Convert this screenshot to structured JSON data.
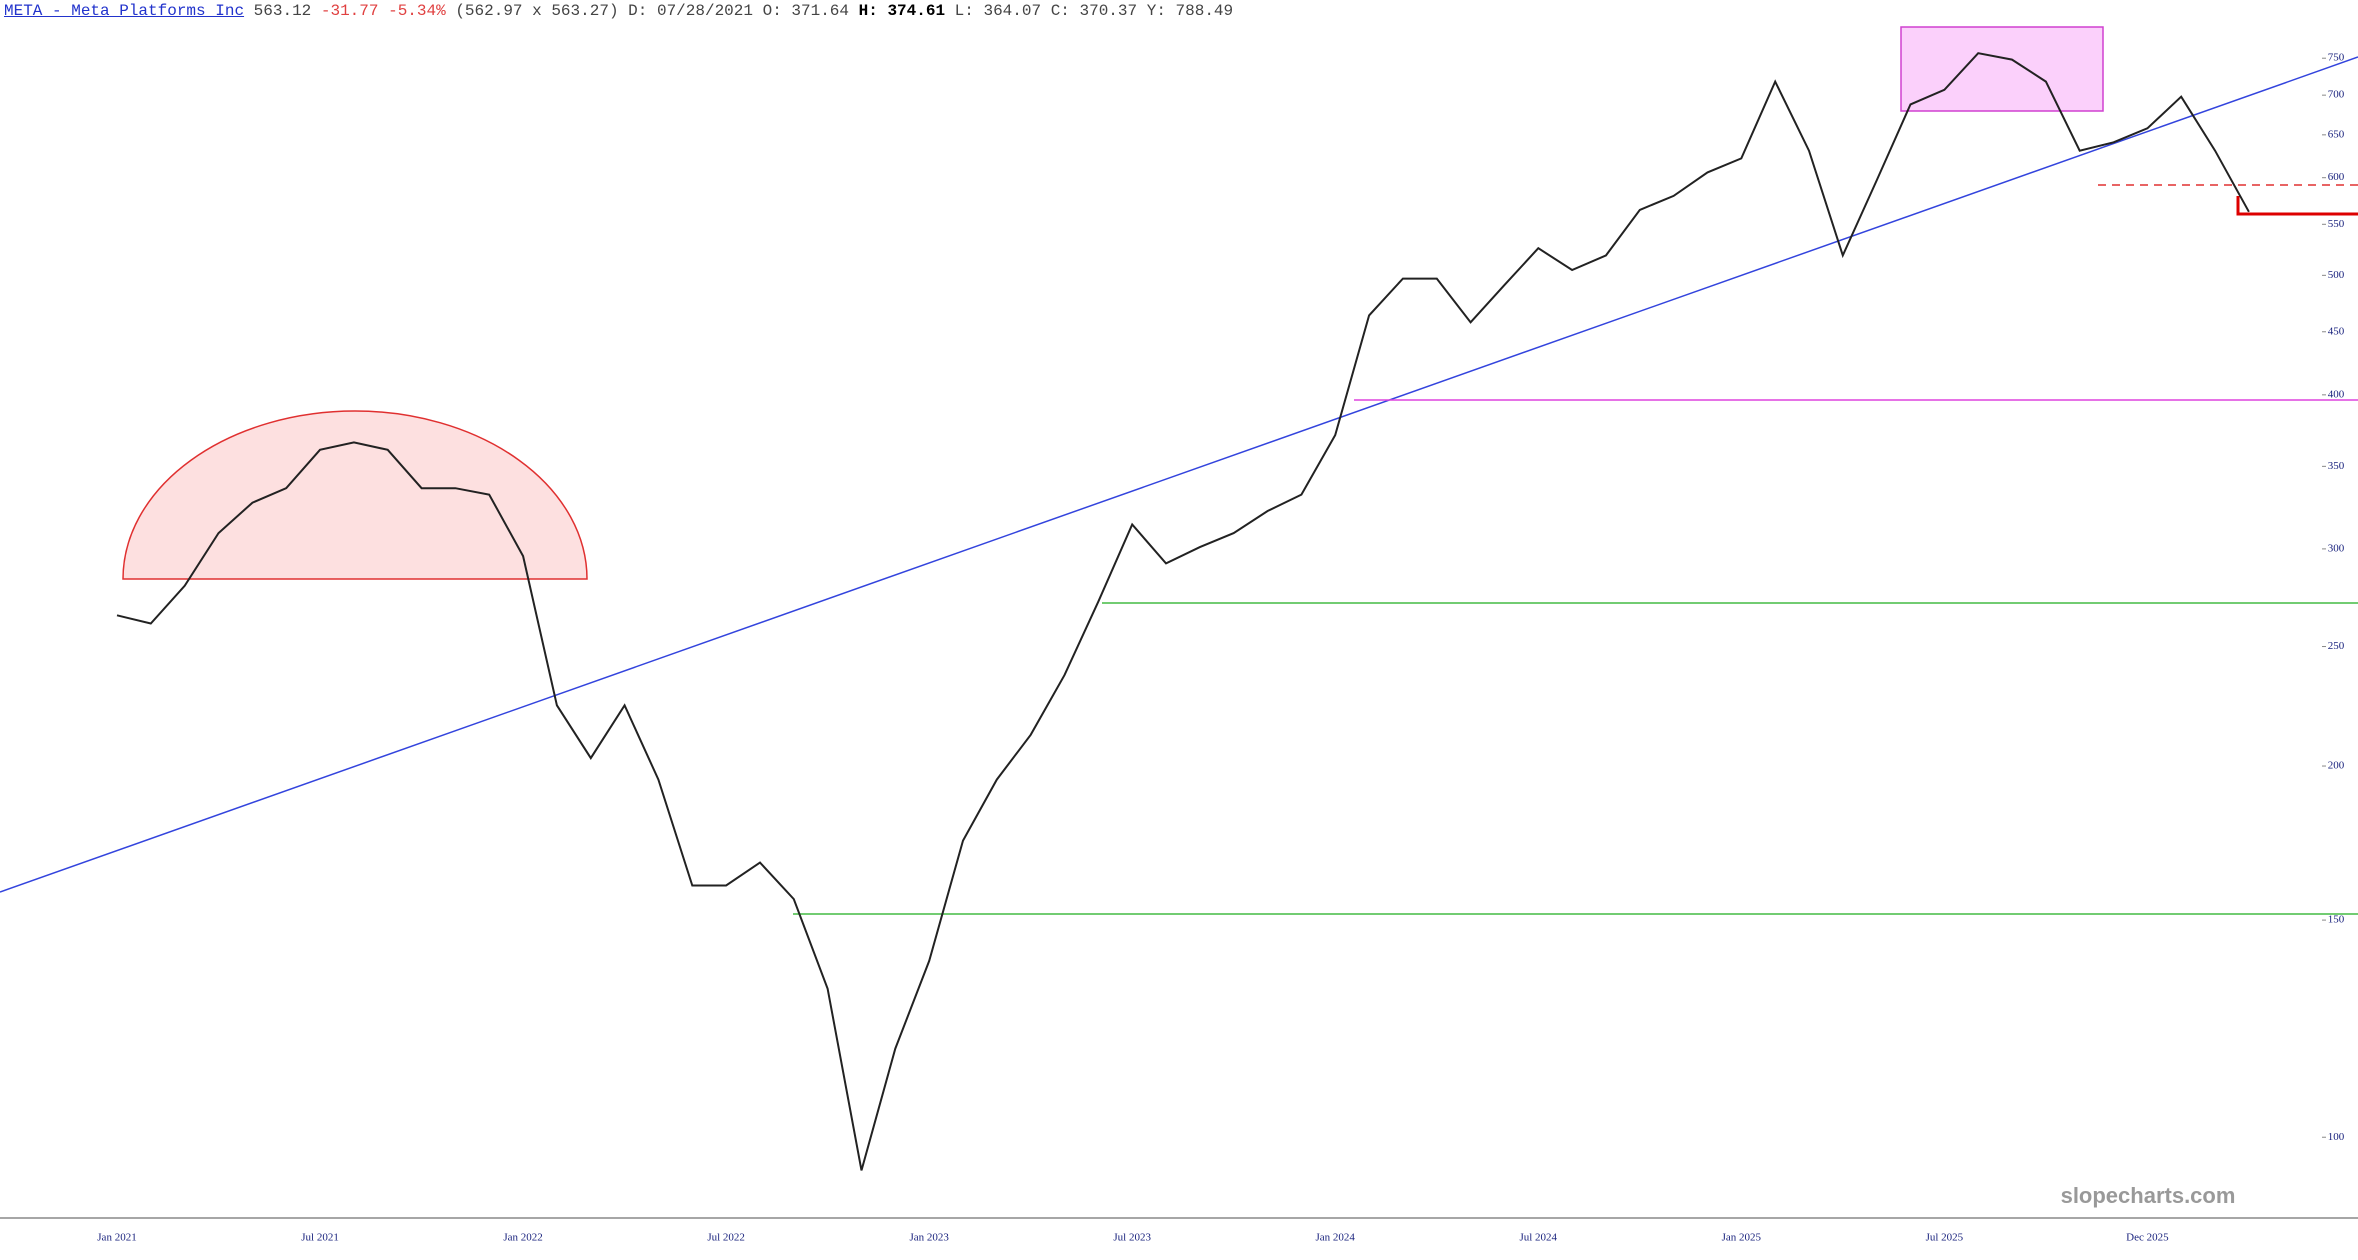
{
  "header": {
    "symbol": "META - Meta Platforms Inc",
    "last": "563.12",
    "change": "-31.77",
    "change_pct": "-5.34%",
    "bid_ask": "(562.97 x 563.27)",
    "date": "D: 07/28/2021",
    "open": "O: 371.64",
    "high_label": "H:",
    "high": "374.61",
    "low": "L: 364.07",
    "close": "C: 370.37",
    "y": "Y: 788.49"
  },
  "chart_data": {
    "type": "line",
    "log_scale": true,
    "categories": [
      "Jan 2021",
      null,
      null,
      null,
      null,
      null,
      "Jul 2021",
      null,
      null,
      null,
      null,
      null,
      "Jan 2022",
      null,
      null,
      null,
      null,
      null,
      "Jul 2022",
      null,
      null,
      null,
      null,
      null,
      "Jan 2023",
      null,
      null,
      null,
      null,
      null,
      "Jul 2023",
      null,
      null,
      null,
      null,
      null,
      "Jan 2024",
      null,
      null,
      null,
      null,
      null,
      "Jul 2024",
      null,
      null,
      null,
      null,
      null,
      "Jan 2025",
      null,
      null,
      null,
      null,
      null,
      "Jul 2025",
      null,
      null,
      null,
      null,
      null,
      "Dec 2025",
      null,
      null,
      null
    ],
    "series": [
      {
        "name": "META",
        "color": "#222222",
        "values": [
          265,
          261,
          280,
          309,
          327,
          336,
          361,
          366,
          361,
          336,
          336,
          332,
          296,
          224,
          203,
          224,
          195,
          160,
          160,
          167,
          156,
          132,
          94,
          118,
          139,
          174,
          195,
          212,
          237,
          272,
          314,
          292,
          301,
          309,
          322,
          332,
          371,
          464,
          497,
          497,
          458,
          491,
          526,
          505,
          519,
          565,
          580,
          606,
          622,
          718,
          631,
          519,
          597,
          688,
          707,
          757,
          748,
          718,
          631,
          641,
          658,
          698,
          631,
          563
        ]
      }
    ],
    "ylim": [
      86,
      795
    ],
    "yticks": [
      100,
      150,
      200,
      250,
      300,
      350,
      400,
      450,
      500,
      550,
      600,
      650,
      700,
      750
    ],
    "watermark": "slopecharts.com"
  }
}
